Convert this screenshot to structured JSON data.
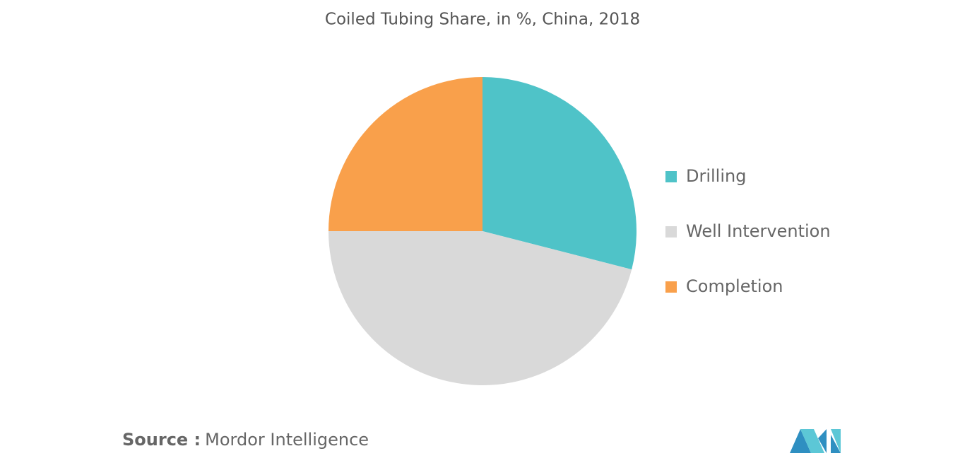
{
  "chart_data": {
    "type": "pie",
    "title": "Coiled Tubing Share, in %, China, 2018",
    "categories": [
      "Drilling",
      "Well Intervention",
      "Completion"
    ],
    "values": [
      29,
      46,
      25
    ],
    "colors": [
      "#4fc3c8",
      "#d9d9d9",
      "#f9a04b"
    ],
    "legend": "right"
  },
  "footer": {
    "source_label": "Source :",
    "source": "Mordor Intelligence"
  }
}
